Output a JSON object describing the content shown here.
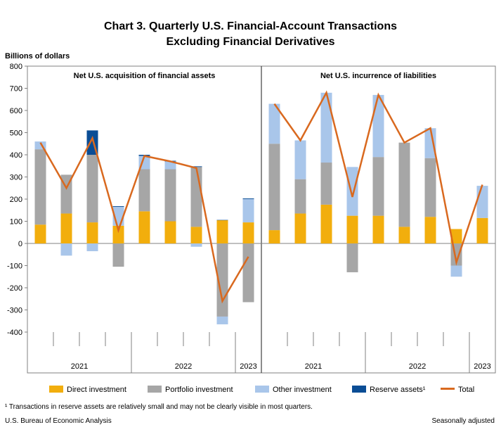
{
  "title_line1": "Chart 3. Quarterly U.S. Financial-Account Transactions",
  "title_line2": "Excluding Financial Derivatives",
  "unit_label": "Billions of dollars",
  "footnote": "¹ Transactions in reserve assets are relatively small and may not be clearly visible in most quarters.",
  "source": "U.S. Bureau of Economic Analysis",
  "adjustment": "Seasonally adjusted",
  "legend": {
    "direct": "Direct investment",
    "portfolio": "Portfolio investment",
    "other": "Other investment",
    "reserve": "Reserve assets¹",
    "total": "Total"
  },
  "colors": {
    "direct": "#F2AE0D",
    "portfolio": "#A6A6A6",
    "other": "#A9C6EA",
    "reserve": "#0A4D95",
    "total": "#D9691F"
  },
  "chart_data": {
    "type": "bar",
    "stacked": true,
    "ylabel": "Billions of dollars",
    "ylim": [
      -400,
      800
    ],
    "yticks": [
      -400,
      -300,
      -200,
      -100,
      0,
      100,
      200,
      300,
      400,
      500,
      600,
      700,
      800
    ],
    "grid": false,
    "legend_position": "bottom",
    "panels": [
      {
        "title": "Net U.S. acquisition of financial assets",
        "year_labels": [
          {
            "label": "2021",
            "quarters": [
              0,
              3
            ]
          },
          {
            "label": "2022",
            "quarters": [
              4,
              7
            ]
          },
          {
            "label": "2023",
            "quarters": [
              8,
              8
            ]
          }
        ],
        "series": [
          {
            "name": "Direct investment",
            "key": "direct",
            "values": [
              85,
              135,
              95,
              80,
              145,
              100,
              75,
              105,
              95
            ]
          },
          {
            "name": "Portfolio investment",
            "key": "portfolio",
            "values": [
              340,
              175,
              305,
              -105,
              190,
              235,
              270,
              -330,
              -265
            ]
          },
          {
            "name": "Other investment",
            "key": "other",
            "values": [
              35,
              -55,
              -35,
              85,
              60,
              35,
              -15,
              -35,
              105
            ]
          },
          {
            "name": "Reserve assets¹",
            "key": "reserve",
            "values": [
              0,
              0,
              110,
              3,
              5,
              3,
              3,
              1,
              3
            ]
          }
        ],
        "total": [
          455,
          250,
          475,
          60,
          395,
          370,
          340,
          -260,
          -60
        ]
      },
      {
        "title": "Net U.S. incurrence of liabilities",
        "year_labels": [
          {
            "label": "2021",
            "quarters": [
              0,
              3
            ]
          },
          {
            "label": "2022",
            "quarters": [
              4,
              7
            ]
          },
          {
            "label": "2023",
            "quarters": [
              8,
              8
            ]
          }
        ],
        "series": [
          {
            "name": "Direct investment",
            "key": "direct",
            "values": [
              60,
              135,
              175,
              125,
              125,
              75,
              120,
              65,
              115
            ]
          },
          {
            "name": "Portfolio investment",
            "key": "portfolio",
            "values": [
              390,
              155,
              190,
              -130,
              265,
              380,
              265,
              -100,
              0
            ]
          },
          {
            "name": "Other investment",
            "key": "other",
            "values": [
              180,
              175,
              315,
              220,
              280,
              0,
              135,
              -50,
              145
            ]
          }
        ],
        "total": [
          630,
          465,
          680,
          210,
          670,
          455,
          520,
          -85,
          265
        ]
      }
    ]
  }
}
